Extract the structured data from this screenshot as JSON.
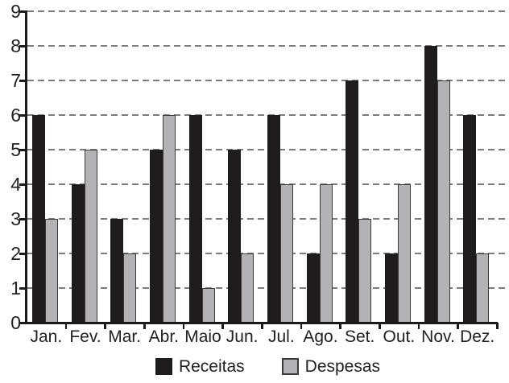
{
  "chart_data": {
    "type": "bar",
    "categories": [
      "Jan.",
      "Fev.",
      "Mar.",
      "Abr.",
      "Maio",
      "Jun.",
      "Jul.",
      "Ago.",
      "Set.",
      "Out.",
      "Nov.",
      "Dez."
    ],
    "series": [
      {
        "name": "Receitas",
        "color": "#1e1c1d",
        "border_color": "#1e1c1d",
        "values": [
          6,
          4,
          3,
          5,
          6,
          5,
          6,
          2,
          7,
          2,
          8,
          6
        ]
      },
      {
        "name": "Despesas",
        "color": "#b3b3b5",
        "border_color": "#3a3a3a",
        "values": [
          3,
          5,
          2,
          6,
          1,
          2,
          4,
          4,
          3,
          4,
          7,
          2
        ]
      }
    ],
    "ylim": [
      0,
      9
    ],
    "y_ticks": [
      "0",
      "1",
      "2",
      "3",
      "4",
      "5",
      "6",
      "7",
      "8",
      "9"
    ],
    "grid": "horizontal-dashed",
    "gridline_color": "#7d7d7d",
    "axis_color": "#1a1a1a",
    "text_color": "#231f20",
    "legend_position": "bottom-center"
  }
}
